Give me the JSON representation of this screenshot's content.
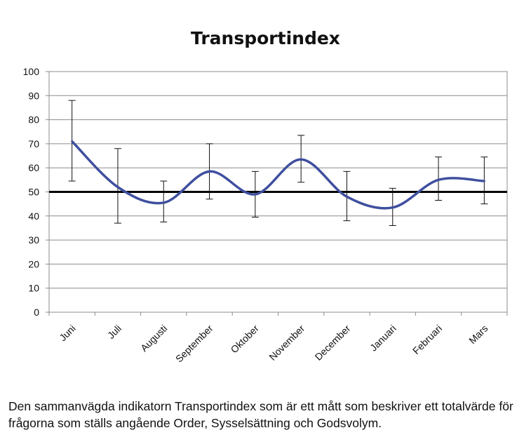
{
  "chart_data": {
    "type": "line",
    "title": "Transportindex",
    "categories": [
      "Juni",
      "Juli",
      "Augusti",
      "September",
      "Oktober",
      "November",
      "December",
      "Januari",
      "Februari",
      "Mars"
    ],
    "series": [
      {
        "name": "Transportindex",
        "values": [
          71,
          52,
          45.5,
          58.5,
          49,
          63.5,
          48,
          43.5,
          55,
          54.5
        ],
        "error_low": [
          54.5,
          37,
          37.5,
          47,
          39.5,
          54,
          38,
          36,
          46.5,
          45
        ],
        "error_high": [
          88,
          68,
          54.5,
          70,
          58.5,
          73.5,
          58.5,
          51.5,
          64.5,
          64.5
        ],
        "color": "#3f4f9f"
      }
    ],
    "reference_line": {
      "value": 50,
      "color": "#000000"
    },
    "yticks": [
      0,
      10,
      20,
      30,
      40,
      50,
      60,
      70,
      80,
      90,
      100
    ],
    "ylim": [
      0,
      100
    ],
    "xlabel": "",
    "ylabel": "",
    "grid": true,
    "legend": "none"
  },
  "caption": "Den sammanvägda indikatorn Transportindex som är ett mått som beskriver ett totalvärde för frågorna som ställs angående Order, Sysselsättning och Godsvolym."
}
